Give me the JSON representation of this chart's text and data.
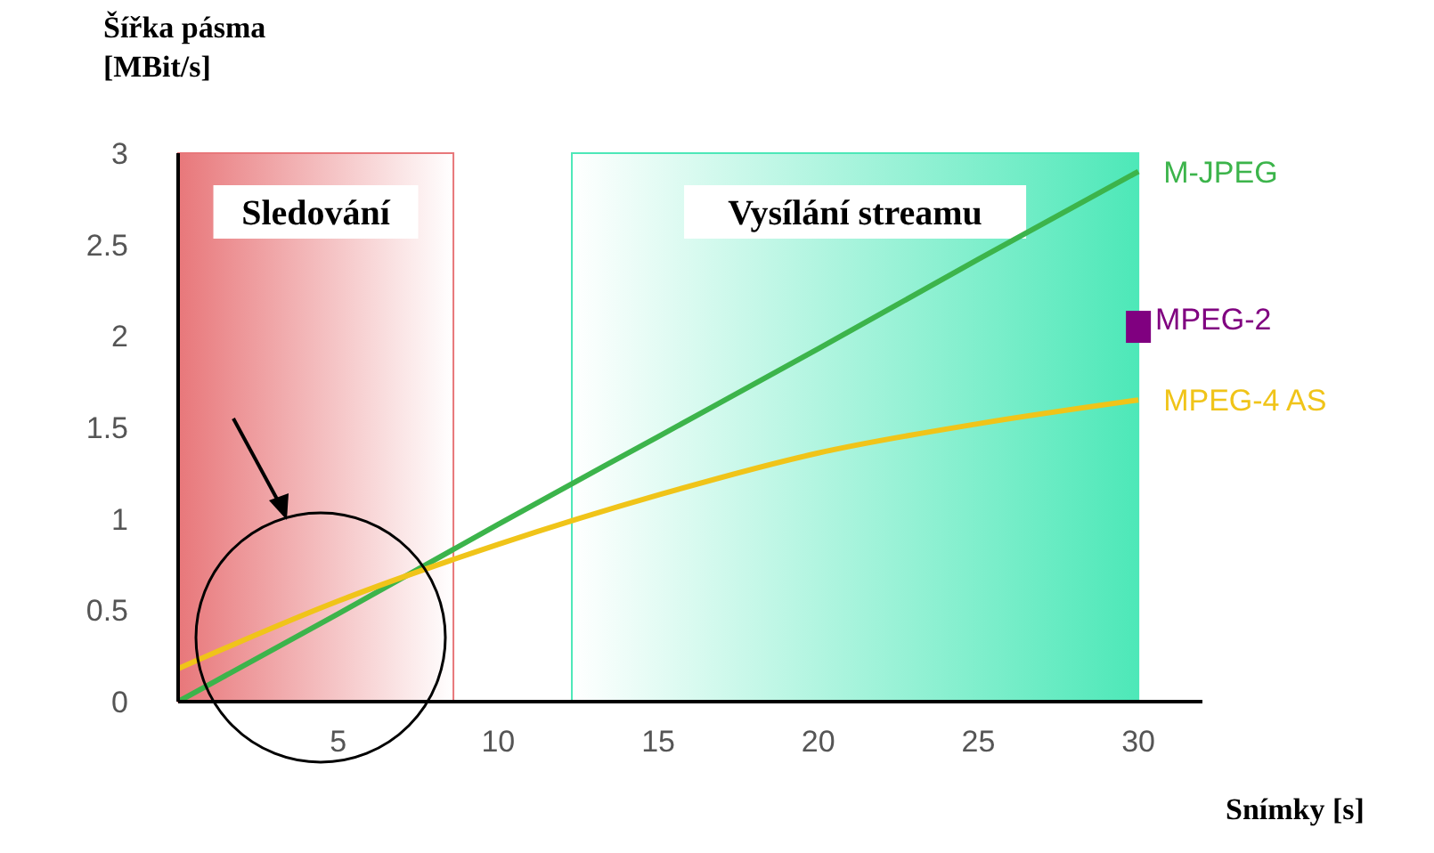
{
  "chart_data": {
    "type": "line",
    "xlabel": "Snímky [s]",
    "ylabel": "Šířka pásma [MBit/s]",
    "x": [
      0,
      5,
      10,
      15,
      20,
      25,
      30
    ],
    "series": [
      {
        "name": "M-JPEG",
        "color": "#3cb44b",
        "values": [
          0,
          0.48,
          0.97,
          1.45,
          1.93,
          2.42,
          2.9
        ]
      },
      {
        "name": "MPEG-2",
        "color": "#800080",
        "type": "scatter",
        "marker": "square",
        "x": [
          30
        ],
        "values": [
          2.05
        ]
      },
      {
        "name": "MPEG-4 AS",
        "color": "#f0c419",
        "values": [
          0.18,
          0.55,
          0.86,
          1.13,
          1.36,
          1.52,
          1.65
        ]
      }
    ],
    "xlim": [
      0,
      32
    ],
    "xticks": [
      5,
      10,
      15,
      20,
      25,
      30
    ],
    "ylim": [
      0,
      3
    ],
    "yticks": [
      0,
      0.5,
      1,
      1.5,
      2,
      2.5,
      3
    ],
    "bands": [
      {
        "axis": "x",
        "from": 0,
        "to": 8.6,
        "label": "Sledování",
        "color": "#e8777a"
      },
      {
        "axis": "x",
        "from": 12.3,
        "to": 30,
        "label": "Vysílání streamu",
        "color": "#4de8b8"
      }
    ],
    "grid": false,
    "legend": false,
    "marker": "none",
    "line_style": "solid"
  }
}
